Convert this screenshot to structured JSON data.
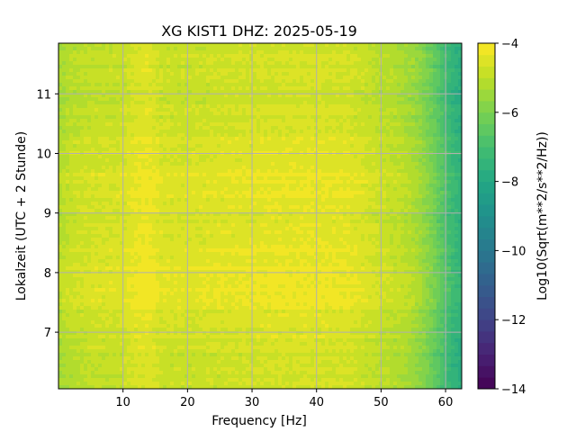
{
  "chart_data": {
    "type": "heatmap",
    "title": "XG KIST1  DHZ: 2025-05-19",
    "xlabel": "Frequency [Hz]",
    "ylabel": "Lokalzeit (UTC + 2 Stunde)",
    "xlim": [
      0,
      62.5
    ],
    "ylim": [
      11.85,
      6.05
    ],
    "x_ticks": [
      10,
      20,
      30,
      40,
      50,
      60
    ],
    "x_tick_labels": [
      "10",
      "20",
      "30",
      "40",
      "50",
      "60"
    ],
    "y_ticks": [
      7,
      8,
      9,
      10,
      11
    ],
    "y_tick_labels": [
      "7",
      "8",
      "9",
      "10",
      "11"
    ],
    "y_inverted": true,
    "grid": true,
    "colorbar": {
      "label": "Log10(Sqrt(m**2/s**2/Hz))",
      "range": [
        -14,
        -4
      ],
      "ticks": [
        -4,
        -6,
        -8,
        -10,
        -12,
        -14
      ],
      "tick_labels": [
        "−4",
        "−6",
        "−8",
        "−10",
        "−12",
        "−14"
      ],
      "levels": 30,
      "colormap": "viridis"
    },
    "frequency_profile": {
      "frequencies_hz": [
        0,
        2,
        5,
        8,
        10,
        12,
        14,
        16,
        20,
        25,
        30,
        35,
        40,
        45,
        50,
        53,
        55,
        56,
        57,
        58,
        59,
        60,
        61,
        62.5
      ],
      "log10_amplitude": [
        -5.2,
        -4.9,
        -4.75,
        -4.7,
        -4.65,
        -4.4,
        -4.3,
        -4.6,
        -4.65,
        -4.55,
        -4.5,
        -4.45,
        -4.45,
        -4.5,
        -4.85,
        -5.05,
        -5.3,
        -5.5,
        -5.8,
        -6.1,
        -6.5,
        -6.9,
        -7.3,
        -7.6
      ]
    },
    "time_profile": {
      "time_h": [
        6.05,
        7.0,
        7.5,
        8.0,
        8.5,
        9.0,
        9.5,
        10.0,
        10.5,
        11.0,
        11.5,
        11.85
      ],
      "offset": [
        -0.3,
        -0.1,
        0.15,
        0.3,
        0.1,
        0.0,
        0.15,
        0.05,
        -0.15,
        -0.25,
        -0.2,
        -0.3
      ]
    }
  }
}
